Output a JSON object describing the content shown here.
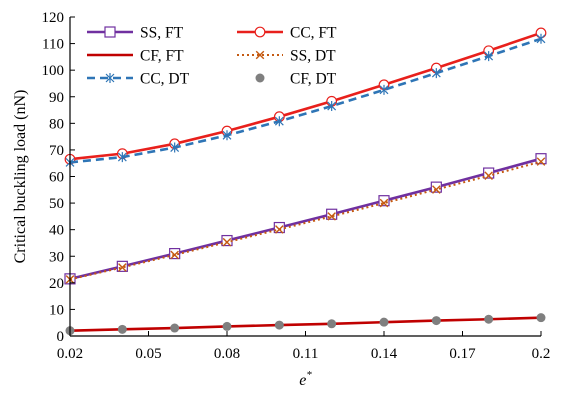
{
  "chart_data": {
    "type": "line",
    "title": "",
    "xlabel": "e",
    "xlabel_superscript": "*",
    "ylabel": "Critical buckling load (nN)",
    "x": [
      0.02,
      0.04,
      0.06,
      0.08,
      0.1,
      0.12,
      0.14,
      0.16,
      0.18,
      0.2
    ],
    "xlim": [
      0.02,
      0.2
    ],
    "ylim": [
      0,
      120
    ],
    "x_ticks": [
      0.02,
      0.05,
      0.08,
      0.11,
      0.14,
      0.17,
      0.2
    ],
    "x_tick_labels": [
      "0.02",
      "0.05",
      "0.08",
      "0.11",
      "0.14",
      "0.17",
      "0.2"
    ],
    "y_ticks": [
      0,
      10,
      20,
      30,
      40,
      50,
      60,
      70,
      80,
      90,
      100,
      110,
      120
    ],
    "y_tick_labels": [
      "0",
      "10",
      "20",
      "30",
      "40",
      "50",
      "60",
      "70",
      "80",
      "90",
      "100",
      "110",
      "120"
    ],
    "grid": false,
    "legend_position": "top-left",
    "series": [
      {
        "name": "SS, FT",
        "color": "#7030a0",
        "line": "solid",
        "marker": "open-square",
        "values": [
          21.5,
          26.2,
          31.0,
          35.9,
          40.8,
          45.8,
          50.9,
          56.0,
          61.3,
          66.7
        ]
      },
      {
        "name": "CC, FT",
        "color": "#e8201c",
        "line": "solid",
        "marker": "open-circle",
        "values": [
          66.5,
          68.6,
          72.3,
          77.1,
          82.5,
          88.3,
          94.5,
          100.8,
          107.3,
          114.0
        ]
      },
      {
        "name": "CF, FT",
        "color": "#c00000",
        "line": "solid",
        "marker": "none",
        "values": [
          2.0,
          2.5,
          3.0,
          3.6,
          4.1,
          4.6,
          5.2,
          5.8,
          6.3,
          6.9
        ]
      },
      {
        "name": "SS, DT",
        "color": "#c55a11",
        "line": "dotted",
        "marker": "x",
        "values": [
          21.3,
          25.8,
          30.5,
          35.3,
          40.1,
          45.0,
          50.0,
          55.1,
          60.3,
          65.6
        ]
      },
      {
        "name": "CC, DT",
        "color": "#2e75b6",
        "line": "dashed",
        "marker": "asterisk",
        "values": [
          65.3,
          67.3,
          70.9,
          75.5,
          80.8,
          86.5,
          92.6,
          98.9,
          105.3,
          111.8
        ]
      },
      {
        "name": "CF, DT",
        "color": "#7f7f7f",
        "line": "none",
        "marker": "filled-circle",
        "values": [
          2.0,
          2.5,
          3.0,
          3.6,
          4.1,
          4.6,
          5.2,
          5.8,
          6.3,
          6.9
        ]
      }
    ]
  }
}
